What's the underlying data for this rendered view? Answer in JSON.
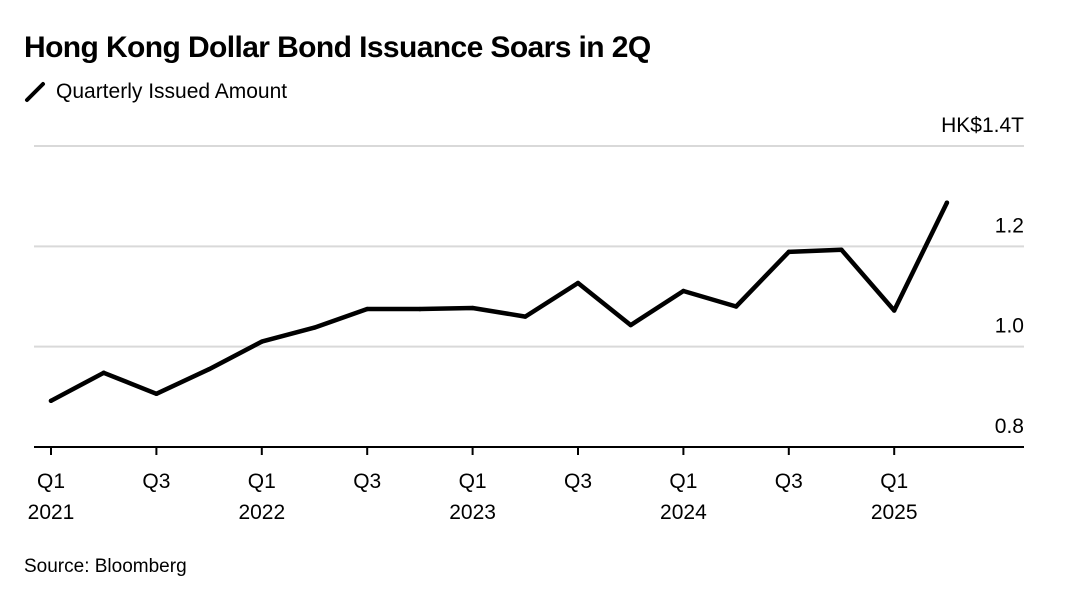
{
  "title": "Hong Kong Dollar Bond Issuance Soars in 2Q",
  "legend": {
    "label": "Quarterly Issued Amount",
    "icon": "line-swatch-icon"
  },
  "source": "Source: Bloomberg",
  "colors": {
    "series_line": "#000000",
    "gridline": "#d9d9d9",
    "axis": "#000000"
  },
  "chart_data": {
    "type": "line",
    "ylim": [
      0.8,
      1.4
    ],
    "yticks": [
      {
        "value": 1.4,
        "label": "HK$1.4T"
      },
      {
        "value": 1.2,
        "label": "1.2"
      },
      {
        "value": 1.0,
        "label": "1.0"
      },
      {
        "value": 0.8,
        "label": "0.8"
      }
    ],
    "x": [
      "Q1 2021",
      "Q2 2021",
      "Q3 2021",
      "Q4 2021",
      "Q1 2022",
      "Q2 2022",
      "Q3 2022",
      "Q4 2022",
      "Q1 2023",
      "Q2 2023",
      "Q3 2023",
      "Q4 2023",
      "Q1 2024",
      "Q2 2024",
      "Q3 2024",
      "Q4 2024",
      "Q1 2025",
      "Q2 2025"
    ],
    "xticks": [
      {
        "index": 0,
        "quarter": "Q1",
        "year": "2021"
      },
      {
        "index": 2,
        "quarter": "Q3",
        "year": ""
      },
      {
        "index": 4,
        "quarter": "Q1",
        "year": "2022"
      },
      {
        "index": 6,
        "quarter": "Q3",
        "year": ""
      },
      {
        "index": 8,
        "quarter": "Q1",
        "year": "2023"
      },
      {
        "index": 10,
        "quarter": "Q3",
        "year": ""
      },
      {
        "index": 12,
        "quarter": "Q1",
        "year": "2024"
      },
      {
        "index": 14,
        "quarter": "Q3",
        "year": ""
      },
      {
        "index": 16,
        "quarter": "Q1",
        "year": "2025"
      }
    ],
    "series": [
      {
        "values": [
          0.892,
          0.948,
          0.906,
          0.955,
          1.01,
          1.038,
          1.075,
          1.075,
          1.077,
          1.06,
          1.127,
          1.043,
          1.111,
          1.08,
          1.189,
          1.193,
          1.072,
          1.287
        ]
      }
    ],
    "grid": true
  }
}
